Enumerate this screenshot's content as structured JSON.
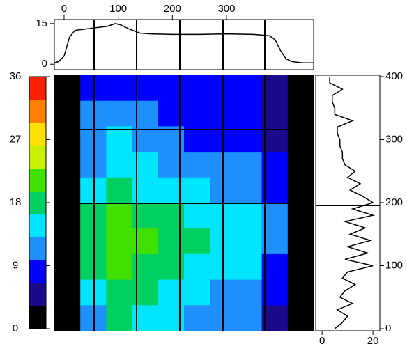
{
  "chart_data": [
    {
      "type": "line",
      "color": "#000000",
      "x": [
        -18,
        -10,
        0,
        10,
        20,
        40,
        60,
        80,
        95,
        105,
        120,
        140,
        160,
        200,
        250,
        300,
        350,
        380,
        390,
        400,
        410,
        420,
        440,
        461
      ],
      "values": [
        0.5,
        1,
        3,
        10,
        12.5,
        13,
        13.5,
        14,
        15,
        14.5,
        13,
        11.5,
        11.2,
        11,
        11,
        11.2,
        11,
        10.5,
        9,
        5,
        2,
        1,
        0.5,
        0.5
      ],
      "xlim": [
        -18,
        461
      ],
      "xticks": [
        0,
        100,
        200,
        300
      ],
      "ylim": [
        -2,
        16.5
      ],
      "yticks": [
        0,
        15
      ]
    },
    {
      "type": "heatmap",
      "xlim": [
        -18,
        461
      ],
      "ylim": [
        0,
        400
      ],
      "clim": [
        0,
        36
      ],
      "cticks": [
        0,
        9,
        18,
        27,
        36
      ],
      "colormap": [
        "#000000",
        "#1a0a8c",
        "#0000ff",
        "#1e90ff",
        "#00e5ff",
        "#00d060",
        "#40e000",
        "#c8f000",
        "#ffe000",
        "#ff8000",
        "#ff2000"
      ],
      "z": [
        [
          0,
          6,
          8,
          7,
          6,
          6,
          6,
          6,
          3,
          0
        ],
        [
          0,
          9,
          11,
          9,
          8,
          7,
          7,
          7,
          5,
          0
        ],
        [
          0,
          10,
          13,
          11,
          9,
          8,
          8,
          8,
          5,
          0
        ],
        [
          0,
          12,
          15,
          13,
          11,
          10,
          9,
          9,
          6,
          0
        ],
        [
          0,
          14,
          18,
          16,
          14,
          13,
          12,
          11,
          7,
          0
        ],
        [
          0,
          17,
          20,
          19,
          17,
          16,
          15,
          14,
          9,
          0
        ],
        [
          0,
          18,
          21,
          20,
          18,
          17,
          16,
          15,
          9,
          0
        ],
        [
          0,
          17,
          20,
          19,
          17,
          15,
          14,
          13,
          8,
          0
        ],
        [
          0,
          16,
          19,
          17,
          15,
          13,
          12,
          11,
          7,
          0
        ],
        [
          0,
          10,
          17,
          15,
          13,
          11,
          10,
          9,
          4,
          0
        ]
      ]
    },
    {
      "type": "hline",
      "color": "#000000",
      "y": [
        0,
        10,
        20,
        30,
        40,
        50,
        60,
        70,
        80,
        90,
        100,
        110,
        120,
        130,
        140,
        150,
        160,
        170,
        180,
        190,
        200,
        210,
        220,
        230,
        240,
        250,
        260,
        270,
        280,
        290,
        300,
        310,
        320,
        330,
        340,
        350,
        360,
        370,
        380,
        390,
        400
      ],
      "values": [
        5,
        8,
        10,
        6,
        12,
        7,
        9,
        13,
        8,
        10,
        20,
        9,
        18,
        10,
        19,
        11,
        17,
        9,
        20,
        12,
        20,
        16,
        11,
        15,
        10,
        13,
        9,
        8,
        8,
        7,
        7,
        6,
        6,
        12,
        5,
        5,
        4,
        4,
        8,
        3,
        3
      ],
      "xlim": [
        -2.5,
        22.7
      ],
      "xticks": [
        0,
        20
      ],
      "ylim": [
        0,
        400
      ],
      "yticks": [
        0,
        100,
        200,
        300,
        400
      ]
    }
  ]
}
